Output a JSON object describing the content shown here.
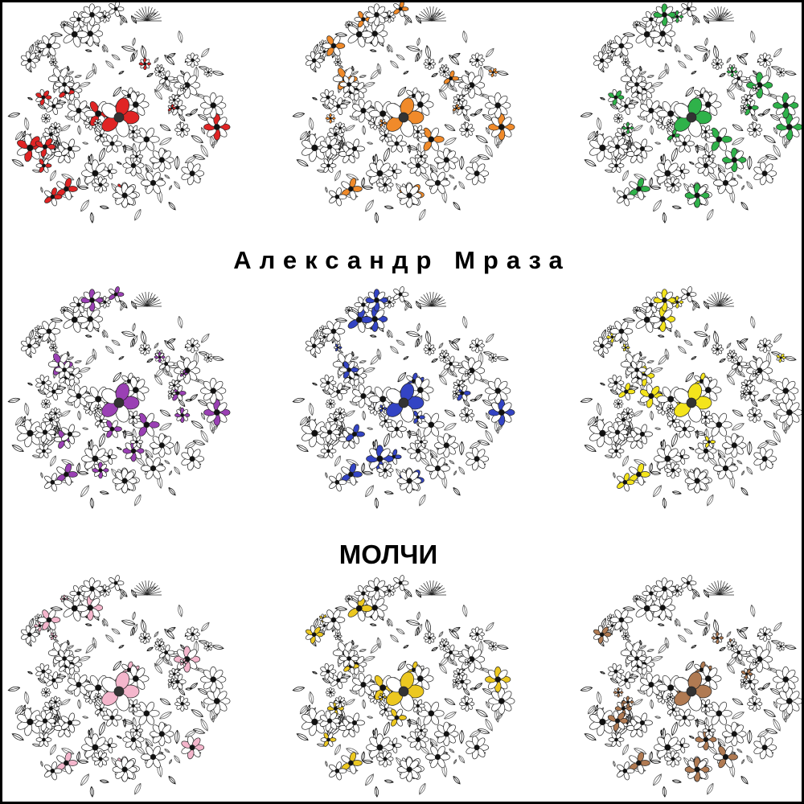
{
  "artist": "Александр Мраза",
  "album_title": "МОЛЧИ",
  "artwork": {
    "style": "black-and-white floral coloring-book circles with colored accent petals",
    "accent_colors": [
      "#e02424",
      "#f08a2a",
      "#2fb24a",
      "#9a40b4",
      "#3344c4",
      "#f4e41c",
      "#f4b6cc",
      "#ecc820",
      "#b07a52"
    ]
  }
}
